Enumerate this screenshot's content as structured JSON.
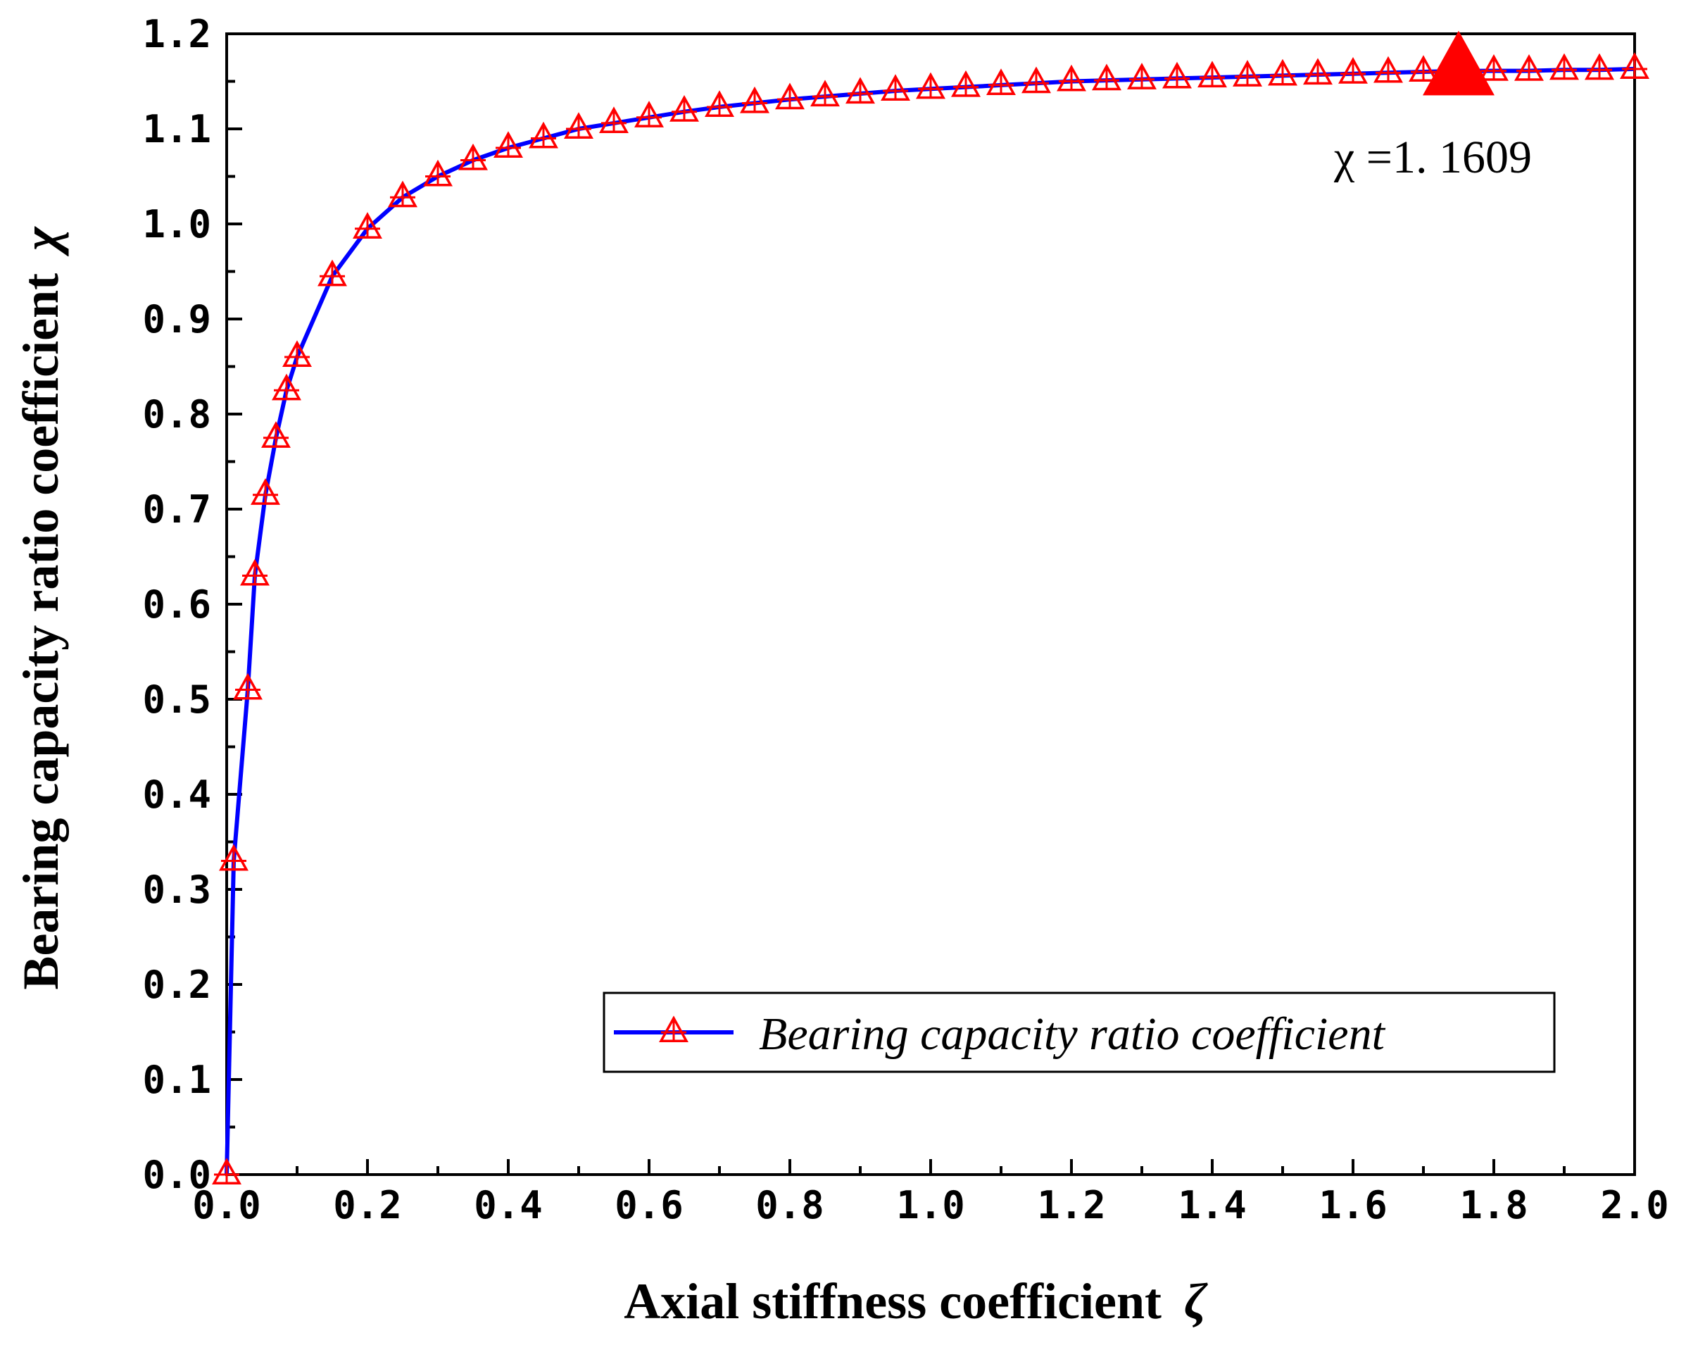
{
  "chart_data": {
    "type": "line",
    "title": "",
    "xlabel": "Axial stiffness coefficient",
    "xlabel_symbol": "ζ",
    "ylabel": "Bearing capacity ratio coefficient",
    "ylabel_symbol": "χ",
    "xlim": [
      0,
      2.0
    ],
    "ylim": [
      0,
      1.2
    ],
    "x_ticks": [
      "0.0",
      "0.2",
      "0.4",
      "0.6",
      "0.8",
      "1.0",
      "1.2",
      "1.4",
      "1.6",
      "1.8",
      "2.0"
    ],
    "y_ticks": [
      "0.0",
      "0.1",
      "0.2",
      "0.3",
      "0.4",
      "0.5",
      "0.6",
      "0.7",
      "0.8",
      "0.9",
      "1.0",
      "1.1",
      "1.2"
    ],
    "grid": false,
    "legend_position": "bottom-right",
    "series": [
      {
        "name": "Bearing capacity ratio coefficient",
        "line_color": "#0000ff",
        "marker_color": "#ff0000",
        "marker": "open-triangle",
        "x": [
          0,
          0.01,
          0.03,
          0.04,
          0.055,
          0.07,
          0.085,
          0.1,
          0.15,
          0.2,
          0.25,
          0.3,
          0.35,
          0.4,
          0.45,
          0.5,
          0.55,
          0.6,
          0.65,
          0.7,
          0.75,
          0.8,
          0.85,
          0.9,
          0.95,
          1.0,
          1.05,
          1.1,
          1.15,
          1.2,
          1.25,
          1.3,
          1.35,
          1.4,
          1.45,
          1.5,
          1.55,
          1.6,
          1.65,
          1.7,
          1.75,
          1.8,
          1.85,
          1.9,
          1.95,
          2.0
        ],
        "values": [
          0.0,
          0.33,
          0.51,
          0.63,
          0.715,
          0.775,
          0.825,
          0.86,
          0.945,
          0.995,
          1.028,
          1.05,
          1.067,
          1.08,
          1.09,
          1.1,
          1.106,
          1.112,
          1.118,
          1.123,
          1.127,
          1.131,
          1.134,
          1.137,
          1.14,
          1.142,
          1.144,
          1.146,
          1.148,
          1.15,
          1.151,
          1.152,
          1.153,
          1.154,
          1.155,
          1.156,
          1.157,
          1.158,
          1.159,
          1.16,
          1.1609,
          1.161,
          1.161,
          1.162,
          1.162,
          1.163
        ]
      }
    ],
    "highlight_point": {
      "x": 1.75,
      "y": 1.1609,
      "label": "χ =1. 1609"
    }
  }
}
